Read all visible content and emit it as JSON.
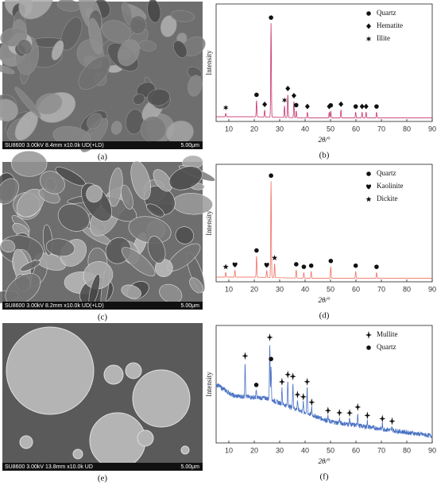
{
  "images": [
    {
      "info": "SU8600 3.00kV 8.4mm x10.0k UD(+LD)",
      "scale": "5.00μm",
      "caption": "(a)",
      "style": "flaky"
    },
    {
      "info": "SU8600 3.00kV 8.2mm x10.0k UD(+LD)",
      "scale": "5.00μm",
      "caption": "(c)",
      "style": "plates"
    },
    {
      "info": "SU8600 3.00kV 13.8mm x10.0k UD",
      "scale": "5.00μm",
      "caption": "(e)",
      "style": "spheres"
    }
  ],
  "chart_data": [
    {
      "type": "xrd",
      "caption": "(b)",
      "xlabel": "2θ/°",
      "ylabel": "Intensity",
      "color": "#c8326e",
      "xlim": [
        5,
        90
      ],
      "xticks": [
        10,
        20,
        30,
        40,
        50,
        60,
        70,
        80,
        90
      ],
      "ylim": [
        0,
        100
      ],
      "background": {
        "x": [
          5,
          20,
          40,
          90
        ],
        "y": [
          4,
          4,
          3,
          3
        ]
      },
      "series": [
        {
          "name": "Quartz",
          "symbol": "circle",
          "x": [
            20.9,
            26.6,
            36.5,
            50.1,
            59.9,
            68.1
          ],
          "values": [
            14,
            80,
            6,
            6,
            5,
            5
          ]
        },
        {
          "name": "Hematite",
          "symbol": "diamond",
          "x": [
            24.1,
            33.2,
            35.6,
            40.9,
            49.5,
            54.1,
            62.4,
            64.0
          ],
          "values": [
            6,
            20,
            14,
            5,
            5,
            7,
            5,
            5
          ]
        },
        {
          "name": "Illite",
          "symbol": "asterisk",
          "x": [
            8.8,
            31.9
          ],
          "values": [
            3,
            10
          ]
        }
      ]
    },
    {
      "type": "xrd",
      "caption": "(d)",
      "xlabel": "2θ/°",
      "ylabel": "Intensity",
      "color": "#f07062",
      "xlim": [
        5,
        90
      ],
      "xticks": [
        10,
        20,
        30,
        40,
        50,
        60,
        70,
        80,
        90
      ],
      "ylim": [
        0,
        100
      ],
      "background": {
        "x": [
          5,
          20,
          40,
          90
        ],
        "y": [
          4,
          4,
          3,
          3
        ]
      },
      "series": [
        {
          "name": "Quartz",
          "symbol": "circle",
          "x": [
            20.9,
            26.6,
            36.5,
            39.5,
            42.4,
            50.1,
            59.9,
            68.1
          ],
          "values": [
            18,
            82,
            7,
            5,
            6,
            10,
            6,
            5
          ]
        },
        {
          "name": "Kaolinite",
          "symbol": "heart",
          "x": [
            12.4,
            24.9
          ],
          "values": [
            6,
            6
          ]
        },
        {
          "name": "Dickite",
          "symbol": "star",
          "x": [
            8.8,
            28.0
          ],
          "values": [
            4,
            12
          ]
        }
      ]
    },
    {
      "type": "xrd",
      "caption": "(f)",
      "xlabel": "2θ/°",
      "ylabel": "Intensity",
      "color": "#4a72c4",
      "xlim": [
        5,
        90
      ],
      "xticks": [
        10,
        20,
        30,
        40,
        50,
        60,
        70,
        80,
        90
      ],
      "ylim": [
        0,
        100
      ],
      "background": {
        "x": [
          5,
          12,
          25,
          35,
          50,
          70,
          90
        ],
        "y": [
          50,
          40,
          38,
          30,
          18,
          12,
          6
        ]
      },
      "series": [
        {
          "name": "Mullite",
          "symbol": "cross",
          "x": [
            16.4,
            26.1,
            30.9,
            33.2,
            35.2,
            37.0,
            39.3,
            40.8,
            42.6,
            49.0,
            53.5,
            57.5,
            60.7,
            64.5,
            70.4,
            74.2
          ],
          "values": [
            30,
            48,
            14,
            22,
            22,
            8,
            8,
            22,
            6,
            4,
            4,
            5,
            11,
            5,
            4,
            3
          ]
        },
        {
          "name": "Quartz",
          "symbol": "circle",
          "x": [
            20.8,
            26.6
          ],
          "values": [
            6,
            30
          ]
        }
      ]
    }
  ]
}
